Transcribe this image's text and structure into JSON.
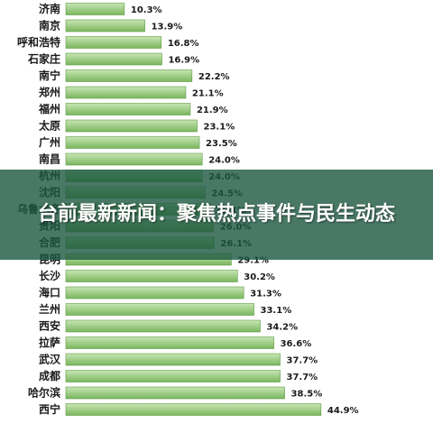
{
  "headline": "台前最新新闻：聚焦热点事件与民生动态",
  "chart_data": {
    "type": "bar",
    "orientation": "horizontal",
    "categories": [
      "济南",
      "南京",
      "呼和浩特",
      "石家庄",
      "南宁",
      "郑州",
      "福州",
      "太原",
      "广州",
      "南昌",
      "杭州",
      "沈阳",
      "乌鲁木齐",
      "贵阳",
      "合肥",
      "昆明",
      "长沙",
      "海口",
      "兰州",
      "西安",
      "拉萨",
      "武汉",
      "成都",
      "哈尔滨",
      "西宁"
    ],
    "values": [
      10.3,
      13.9,
      16.8,
      16.9,
      22.2,
      21.1,
      21.9,
      23.1,
      23.5,
      24.0,
      24.0,
      24.5,
      25.1,
      26.0,
      26.1,
      29.1,
      30.2,
      31.3,
      33.1,
      34.2,
      36.6,
      37.7,
      37.7,
      38.5,
      44.9
    ],
    "value_labels": [
      "10.3%",
      "13.9%",
      "16.8%",
      "16.9%",
      "22.2%",
      "21.1%",
      "21.9%",
      "23.1%",
      "23.5%",
      "24.0%",
      "24.0%",
      "24.5%",
      "25.1%",
      "26.0%",
      "26.1%",
      "29.1%",
      "30.2%",
      "31.3%",
      "33.1%",
      "34.2%",
      "36.6%",
      "37.7%",
      "37.7%",
      "38.5%",
      "44.9%"
    ],
    "xlim": [
      0,
      50
    ],
    "grid": false,
    "colors": {
      "bar_top": "#c8e6b4",
      "bar_bottom": "#7ab65e",
      "bar_edge": "#5f9a45"
    }
  }
}
